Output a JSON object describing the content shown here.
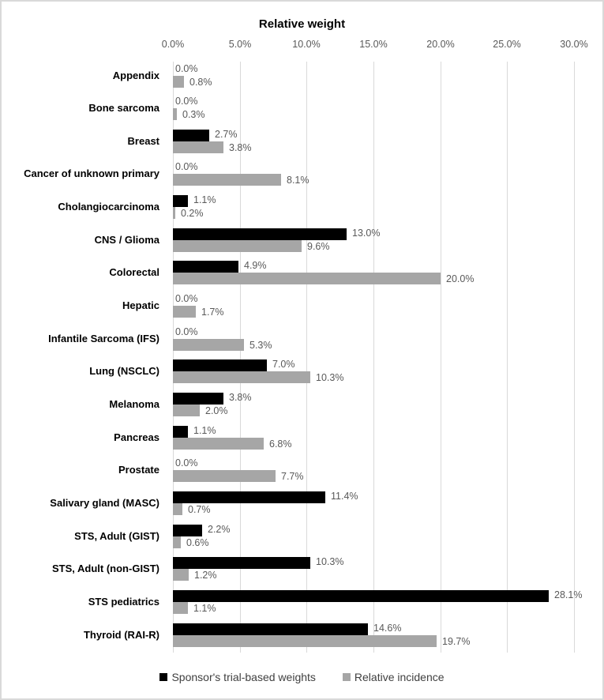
{
  "chart_data": {
    "type": "bar",
    "orientation": "horizontal",
    "title": "Relative weight",
    "xlabel": "Relative weight",
    "ylabel": "",
    "xlim": [
      0,
      30
    ],
    "x_ticks": [
      "0.0%",
      "5.0%",
      "10.0%",
      "15.0%",
      "20.0%",
      "25.0%",
      "30.0%"
    ],
    "grid": true,
    "legend_position": "bottom",
    "categories": [
      "Appendix",
      "Bone sarcoma",
      "Breast",
      "Cancer of unknown primary",
      "Cholangiocarcinoma",
      "CNS / Glioma",
      "Colorectal",
      "Hepatic",
      "Infantile Sarcoma (IFS)",
      "Lung (NSCLC)",
      "Melanoma",
      "Pancreas",
      "Prostate",
      "Salivary gland (MASC)",
      "STS, Adult (GIST)",
      "STS, Adult (non-GIST)",
      "STS pediatrics",
      "Thyroid (RAI-R)"
    ],
    "series": [
      {
        "name": "Sponsor's trial-based weights",
        "color": "#000000",
        "values": [
          0.0,
          0.0,
          2.7,
          0.0,
          1.1,
          13.0,
          4.9,
          0.0,
          0.0,
          7.0,
          3.8,
          1.1,
          0.0,
          11.4,
          2.2,
          10.3,
          28.1,
          14.6
        ]
      },
      {
        "name": "Relative incidence",
        "color": "#a6a6a6",
        "values": [
          0.8,
          0.3,
          3.8,
          8.1,
          0.2,
          9.6,
          20.0,
          1.7,
          5.3,
          10.3,
          2.0,
          6.8,
          7.7,
          0.7,
          0.6,
          1.2,
          1.1,
          19.7
        ]
      }
    ]
  },
  "legend": {
    "items": [
      {
        "label": "Sponsor's trial-based weights",
        "color": "#000000"
      },
      {
        "label": "Relative incidence",
        "color": "#a6a6a6"
      }
    ]
  }
}
